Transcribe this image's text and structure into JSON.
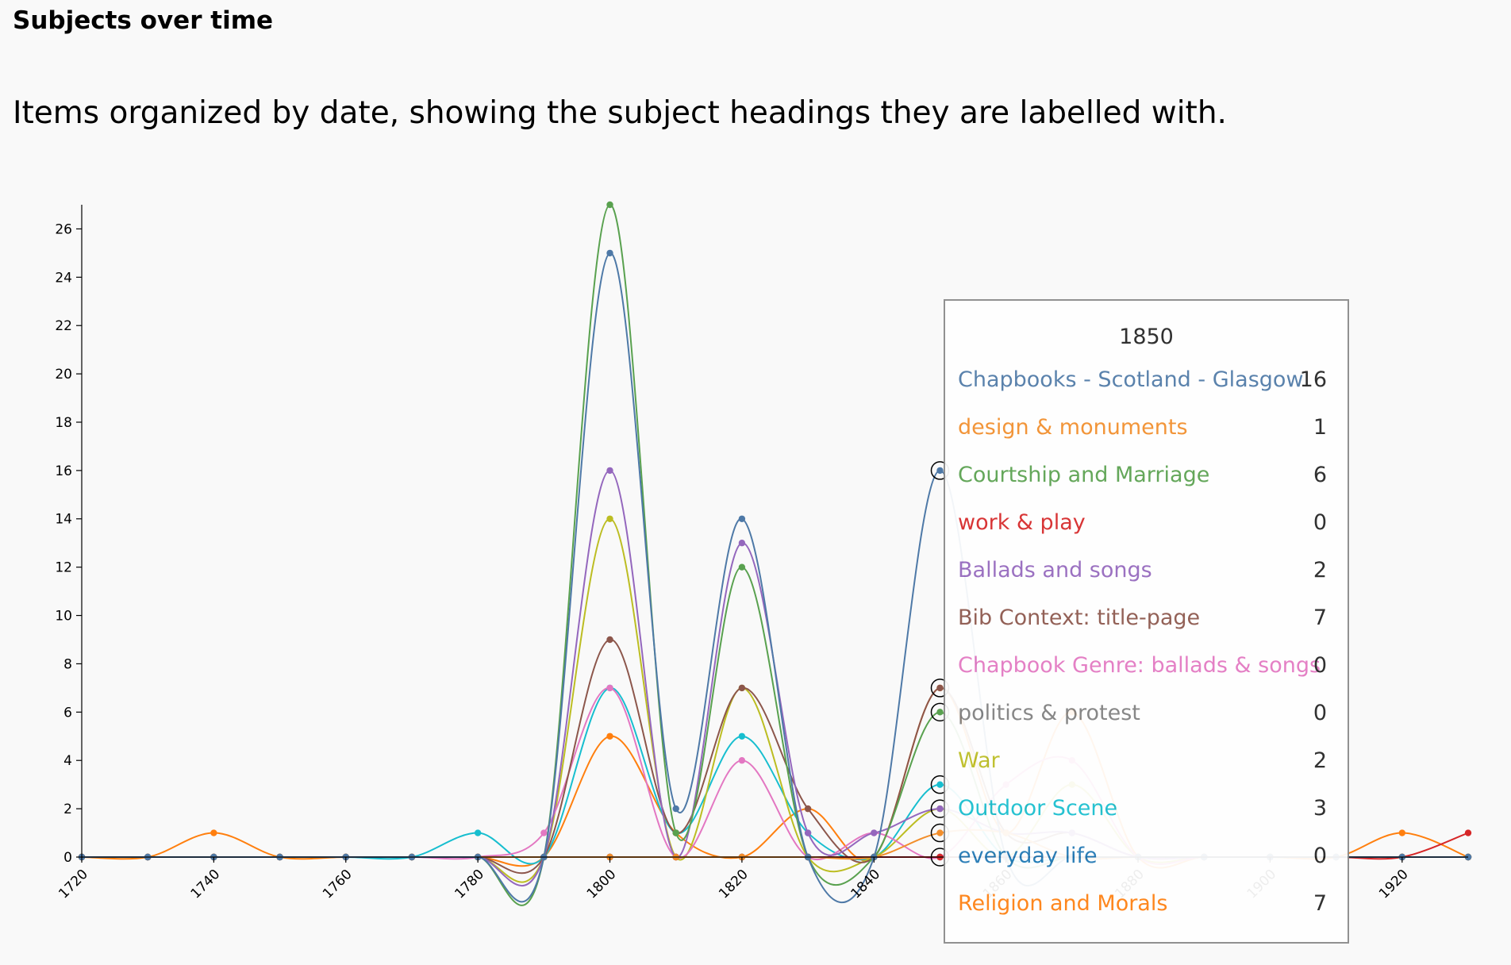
{
  "page": {
    "heading": "Subjects over time",
    "description": "Items organized by date, showing the subject headings they are labelled with."
  },
  "tooltip": {
    "title": "1850",
    "rows": [
      {
        "name": "Chapbooks - Scotland - Glasgow",
        "value": "16",
        "color": "#4e79a7"
      },
      {
        "name": "design & monuments",
        "value": "1",
        "color": "#f28e2b"
      },
      {
        "name": "Courtship and Marriage",
        "value": "6",
        "color": "#59a14f"
      },
      {
        "name": "work & play",
        "value": "0",
        "color": "#d62728"
      },
      {
        "name": "Ballads and songs",
        "value": "2",
        "color": "#9467bd"
      },
      {
        "name": "Bib Context: title-page",
        "value": "7",
        "color": "#8c564b"
      },
      {
        "name": "Chapbook Genre: ballads & songs",
        "value": "0",
        "color": "#e377c2"
      },
      {
        "name": "politics & protest",
        "value": "0",
        "color": "#7f7f7f"
      },
      {
        "name": "War",
        "value": "2",
        "color": "#bcbd22"
      },
      {
        "name": "Outdoor Scene",
        "value": "3",
        "color": "#17becf"
      },
      {
        "name": "everyday life",
        "value": "0",
        "color": "#1f77b4"
      },
      {
        "name": "Religion and Morals",
        "value": "7",
        "color": "#ff7f0e"
      }
    ]
  },
  "chart_data": {
    "type": "line",
    "title": "",
    "xlabel": "",
    "ylabel": "",
    "x": [
      1720,
      1730,
      1740,
      1750,
      1760,
      1770,
      1780,
      1790,
      1800,
      1810,
      1820,
      1830,
      1840,
      1850,
      1860,
      1870,
      1880,
      1890,
      1900,
      1910,
      1920,
      1930
    ],
    "xlim": [
      1720,
      1930
    ],
    "ylim": [
      0,
      27
    ],
    "x_ticks": [
      1720,
      1740,
      1760,
      1780,
      1800,
      1820,
      1840,
      1860,
      1880,
      1900,
      1920
    ],
    "y_ticks": [
      0,
      2,
      4,
      6,
      8,
      10,
      12,
      14,
      16,
      18,
      20,
      22,
      24,
      26
    ],
    "grid": false,
    "series": [
      {
        "name": "Chapbooks - Scotland - Glasgow",
        "color": "#4e79a7",
        "values": [
          0,
          0,
          0,
          0,
          0,
          0,
          0,
          0,
          25,
          2,
          14,
          0,
          0,
          16,
          0,
          0,
          0,
          0,
          0,
          0,
          0,
          0
        ]
      },
      {
        "name": "design & monuments",
        "color": "#f28e2b",
        "values": [
          0,
          0,
          0,
          0,
          0,
          0,
          0,
          0,
          0,
          0,
          0,
          0,
          0,
          1,
          1,
          0,
          0,
          0,
          0,
          0,
          0,
          0
        ]
      },
      {
        "name": "Courtship and Marriage",
        "color": "#59a14f",
        "values": [
          0,
          0,
          0,
          0,
          0,
          0,
          0,
          0,
          27,
          1,
          12,
          0,
          0,
          6,
          0,
          0,
          0,
          0,
          0,
          0,
          0,
          0
        ]
      },
      {
        "name": "work & play",
        "color": "#d62728",
        "values": [
          0,
          0,
          0,
          0,
          0,
          0,
          0,
          0,
          0,
          0,
          0,
          0,
          0,
          0,
          0,
          0,
          0,
          0,
          0,
          0,
          0,
          1
        ]
      },
      {
        "name": "Ballads and songs",
        "color": "#9467bd",
        "values": [
          0,
          0,
          0,
          0,
          0,
          0,
          0,
          0,
          16,
          0,
          13,
          1,
          1,
          2,
          1,
          1,
          0,
          0,
          0,
          0,
          0,
          0
        ]
      },
      {
        "name": "Bib Context: title-page",
        "color": "#8c564b",
        "values": [
          0,
          0,
          0,
          0,
          0,
          0,
          0,
          0,
          9,
          1,
          7,
          2,
          0,
          7,
          1,
          1,
          0,
          0,
          0,
          0,
          0,
          0
        ]
      },
      {
        "name": "Chapbook Genre: ballads & songs",
        "color": "#e377c2",
        "values": [
          0,
          0,
          0,
          0,
          0,
          0,
          0,
          1,
          7,
          0,
          4,
          0,
          1,
          0,
          3,
          4,
          0,
          0,
          0,
          0,
          0,
          0
        ]
      },
      {
        "name": "politics & protest",
        "color": "#7f7f7f",
        "values": [
          0,
          0,
          0,
          0,
          0,
          0,
          0,
          0,
          0,
          0,
          0,
          0,
          0,
          0,
          0,
          0,
          0,
          0,
          0,
          0,
          0,
          0
        ]
      },
      {
        "name": "War",
        "color": "#bcbd22",
        "values": [
          0,
          0,
          0,
          0,
          0,
          0,
          0,
          0,
          14,
          0,
          7,
          0,
          0,
          2,
          0,
          3,
          0,
          0,
          0,
          0,
          0,
          0
        ]
      },
      {
        "name": "Outdoor Scene",
        "color": "#17becf",
        "values": [
          0,
          0,
          0,
          0,
          0,
          0,
          1,
          0,
          7,
          1,
          5,
          1,
          0,
          3,
          0,
          0,
          0,
          0,
          0,
          0,
          0,
          0
        ]
      },
      {
        "name": "everyday life",
        "color": "#1f77b4",
        "values": [
          0,
          0,
          0,
          0,
          0,
          0,
          0,
          0,
          0,
          0,
          0,
          0,
          0,
          0,
          0,
          0,
          0,
          0,
          0,
          0,
          0,
          0
        ]
      },
      {
        "name": "Religion and Morals",
        "color": "#ff7f0e",
        "values": [
          0,
          0,
          1,
          0,
          0,
          0,
          0,
          0,
          5,
          1,
          0,
          2,
          0,
          7,
          1,
          6,
          0,
          0,
          0,
          0,
          1,
          0
        ]
      }
    ],
    "hover": {
      "x": 1850
    }
  }
}
